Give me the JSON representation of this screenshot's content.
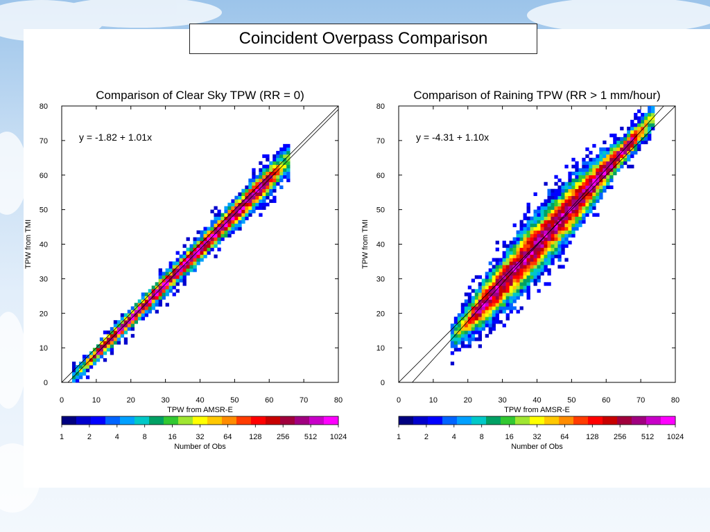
{
  "slide": {
    "title": "Coincident Overpass  Comparison"
  },
  "chart_data": [
    {
      "type": "heatmap",
      "title": "Comparison of Clear Sky TPW (RR = 0)",
      "xlabel": "TPW from AMSR-E",
      "ylabel": "TPW from TMI",
      "xlim": [
        0,
        80
      ],
      "ylim": [
        0,
        80
      ],
      "xticks": [
        "0",
        "10",
        "20",
        "30",
        "40",
        "50",
        "60",
        "70",
        "80"
      ],
      "yticks": [
        "0",
        "10",
        "20",
        "30",
        "40",
        "50",
        "60",
        "70",
        "80"
      ],
      "annotation": "y = -1.82 + 1.01x",
      "regression": {
        "intercept": -1.82,
        "slope": 1.01
      },
      "one_to_one_line": true,
      "density": {
        "x_range": [
          3,
          66
        ],
        "spread": [
          1.5,
          3.5
        ],
        "peak": 0.95
      },
      "colorbar": {
        "label": "Number of Obs",
        "tick_labels": [
          "1",
          "2",
          "4",
          "8",
          "16",
          "32",
          "64",
          "128",
          "256",
          "512",
          "1024"
        ],
        "colors": [
          "#000080",
          "#0000cd",
          "#0000ff",
          "#0064ff",
          "#00a0ff",
          "#00c8c8",
          "#00a064",
          "#32c832",
          "#a0e632",
          "#ffff00",
          "#ffc800",
          "#ff8c00",
          "#ff3c00",
          "#ff0000",
          "#c80000",
          "#a0003c",
          "#a00080",
          "#c800c8",
          "#ff00ff"
        ]
      }
    },
    {
      "type": "heatmap",
      "title": "Comparison of Raining TPW (RR > 1 mm/hour)",
      "xlabel": "TPW from AMSR-E",
      "ylabel": "TPW from TMI",
      "xlim": [
        0,
        80
      ],
      "ylim": [
        0,
        80
      ],
      "xticks": [
        "0",
        "10",
        "20",
        "30",
        "40",
        "50",
        "60",
        "70",
        "80"
      ],
      "yticks": [
        "0",
        "10",
        "20",
        "30",
        "40",
        "50",
        "60",
        "70",
        "80"
      ],
      "annotation": "y = -4.31 + 1.10x",
      "regression": {
        "intercept": -4.31,
        "slope": 1.1
      },
      "one_to_one_line": true,
      "density": {
        "x_range": [
          15,
          74
        ],
        "spread": [
          2.5,
          6.5
        ],
        "peak": 0.9
      },
      "colorbar": {
        "label": "Number of Obs",
        "tick_labels": [
          "1",
          "2",
          "4",
          "8",
          "16",
          "32",
          "64",
          "128",
          "256",
          "512",
          "1024"
        ],
        "colors": [
          "#000080",
          "#0000cd",
          "#0000ff",
          "#0064ff",
          "#00a0ff",
          "#00c8c8",
          "#00a064",
          "#32c832",
          "#a0e632",
          "#ffff00",
          "#ffc800",
          "#ff8c00",
          "#ff3c00",
          "#ff0000",
          "#c80000",
          "#a0003c",
          "#a00080",
          "#c800c8",
          "#ff00ff"
        ]
      }
    }
  ]
}
